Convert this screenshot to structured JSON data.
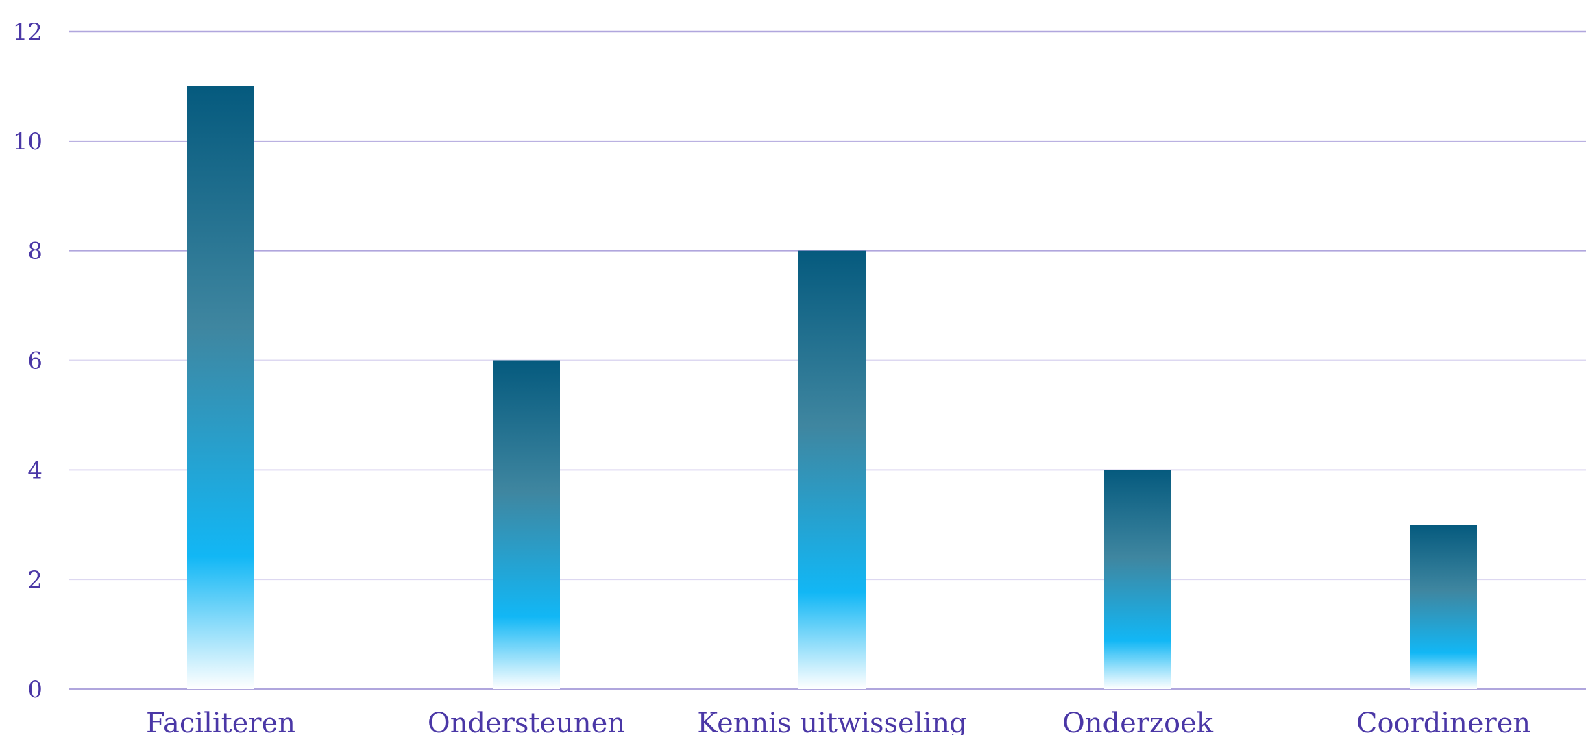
{
  "chart_data": {
    "type": "bar",
    "categories": [
      "Faciliteren",
      "Ondersteunen",
      "Kennis uitwisseling",
      "Onderzoek",
      "Coordineren"
    ],
    "values": [
      11,
      6,
      8,
      4,
      3
    ],
    "title": "",
    "xlabel": "",
    "ylabel": "",
    "ylim": [
      0,
      12
    ],
    "yticks": [
      "0",
      "2",
      "4",
      "6",
      "8",
      "10",
      "12"
    ],
    "grid": true,
    "legend": "none",
    "colors": {
      "bar_top": "#055a7e",
      "bar_mid": "#3f86a0",
      "bar_bright": "#12b7f5",
      "bar_bottom": "#ffffff",
      "gridline_major": "#b0a6dd",
      "gridline_minor": "#ddd8f1",
      "label": "#4a37a6"
    }
  }
}
